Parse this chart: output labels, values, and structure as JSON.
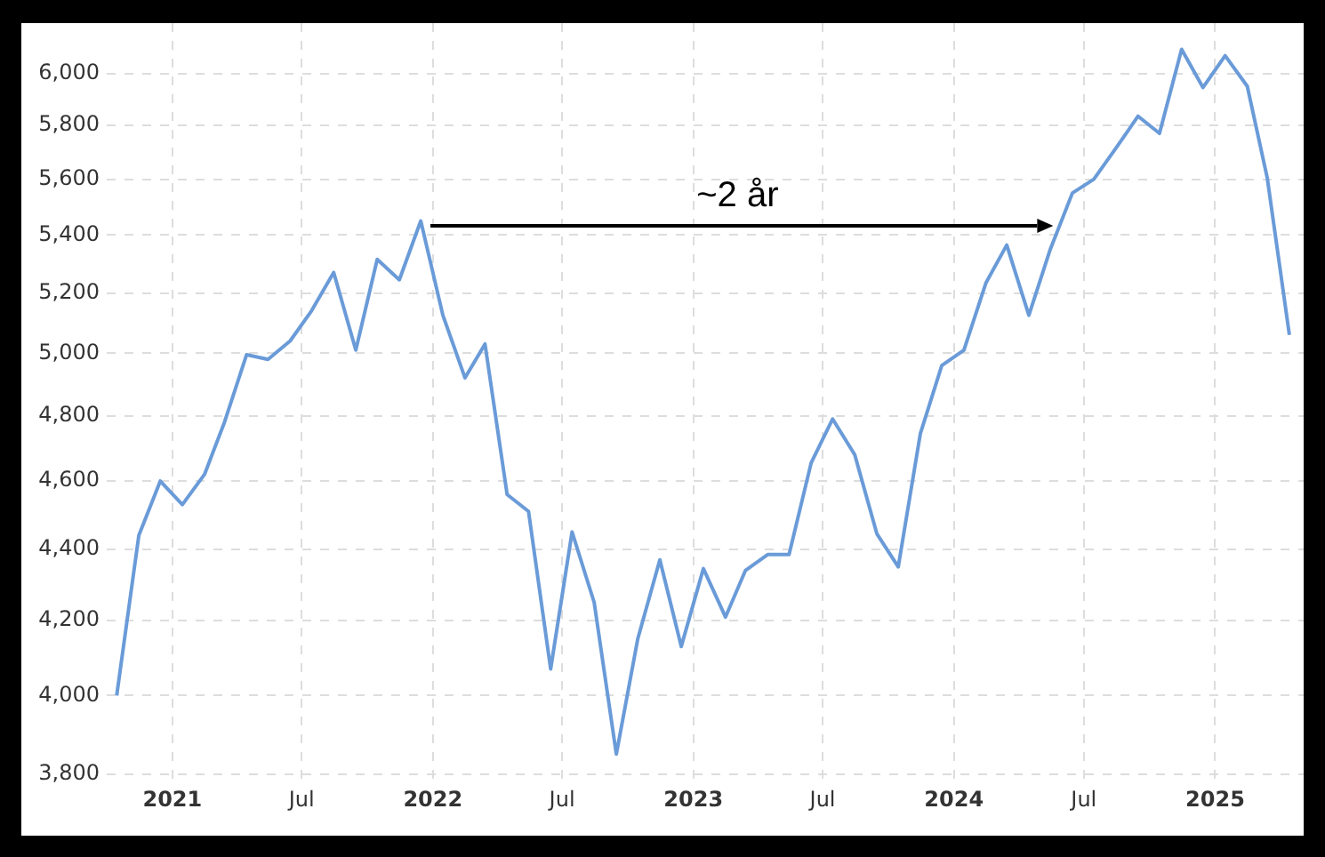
{
  "chart_data": {
    "type": "line",
    "x": [
      "2020-10-15",
      "2020-11-15",
      "2020-12-15",
      "2021-01-15",
      "2021-02-15",
      "2021-03-15",
      "2021-04-15",
      "2021-05-15",
      "2021-06-15",
      "2021-07-15",
      "2021-08-15",
      "2021-09-15",
      "2021-10-15",
      "2021-11-15",
      "2021-12-15",
      "2022-01-15",
      "2022-02-15",
      "2022-03-15",
      "2022-04-15",
      "2022-05-15",
      "2022-06-15",
      "2022-07-15",
      "2022-08-15",
      "2022-09-15",
      "2022-10-15",
      "2022-11-15",
      "2022-12-15",
      "2023-01-15",
      "2023-02-15",
      "2023-03-15",
      "2023-04-15",
      "2023-05-15",
      "2023-06-15",
      "2023-07-15",
      "2023-08-15",
      "2023-09-15",
      "2023-10-15",
      "2023-11-15",
      "2023-12-15",
      "2024-01-15",
      "2024-02-15",
      "2024-03-15",
      "2024-04-15",
      "2024-05-15",
      "2024-06-15",
      "2024-07-15",
      "2024-08-15",
      "2024-09-15",
      "2024-10-15",
      "2024-11-15",
      "2024-12-15",
      "2025-01-15",
      "2025-02-15",
      "2025-03-15",
      "2025-04-15"
    ],
    "series": [
      {
        "color": "#6a9bd8",
        "values": [
          4000,
          4440,
          4600,
          4530,
          4620,
          4780,
          4995,
          4980,
          5040,
          5140,
          5270,
          5010,
          5315,
          5245,
          5450,
          5125,
          4920,
          5030,
          4560,
          4510,
          4070,
          4450,
          4250,
          3850,
          4150,
          4370,
          4130,
          4345,
          4210,
          4340,
          4385,
          4385,
          4655,
          4790,
          4680,
          4445,
          4350,
          4745,
          4960,
          5010,
          5235,
          5365,
          5125,
          5350,
          5550,
          5600,
          5715,
          5835,
          5770,
          6095,
          5945,
          6070,
          5950,
          5605,
          5060
        ]
      }
    ],
    "xlim": [
      "2020-10-01",
      "2025-05-05"
    ],
    "xticks": [
      {
        "value": "2021-01-01",
        "label": "2021"
      },
      {
        "value": "2021-07-01",
        "label": "Jul"
      },
      {
        "value": "2022-01-01",
        "label": "2022"
      },
      {
        "value": "2022-07-01",
        "label": "Jul"
      },
      {
        "value": "2023-01-01",
        "label": "2023"
      },
      {
        "value": "2023-07-01",
        "label": "Jul"
      },
      {
        "value": "2024-01-01",
        "label": "2024"
      },
      {
        "value": "2024-07-01",
        "label": "Jul"
      },
      {
        "value": "2025-01-01",
        "label": "2025"
      }
    ],
    "ylim": [
      3780,
      6200
    ],
    "yticks": [
      {
        "value": 3800,
        "label": "3,800"
      },
      {
        "value": 4000,
        "label": "4,000"
      },
      {
        "value": 4200,
        "label": "4,200"
      },
      {
        "value": 4400,
        "label": "4,400"
      },
      {
        "value": 4600,
        "label": "4,600"
      },
      {
        "value": 4800,
        "label": "4,800"
      },
      {
        "value": 5000,
        "label": "5,000"
      },
      {
        "value": 5200,
        "label": "5,200"
      },
      {
        "value": 5400,
        "label": "5,400"
      },
      {
        "value": 5600,
        "label": "5,600"
      },
      {
        "value": 5800,
        "label": "5,800"
      },
      {
        "value": 6000,
        "label": "6,000"
      }
    ],
    "log": "y",
    "grid": true,
    "legend": false,
    "marker": "none",
    "line_style": "solid",
    "annotations": [
      "~2 år"
    ]
  }
}
